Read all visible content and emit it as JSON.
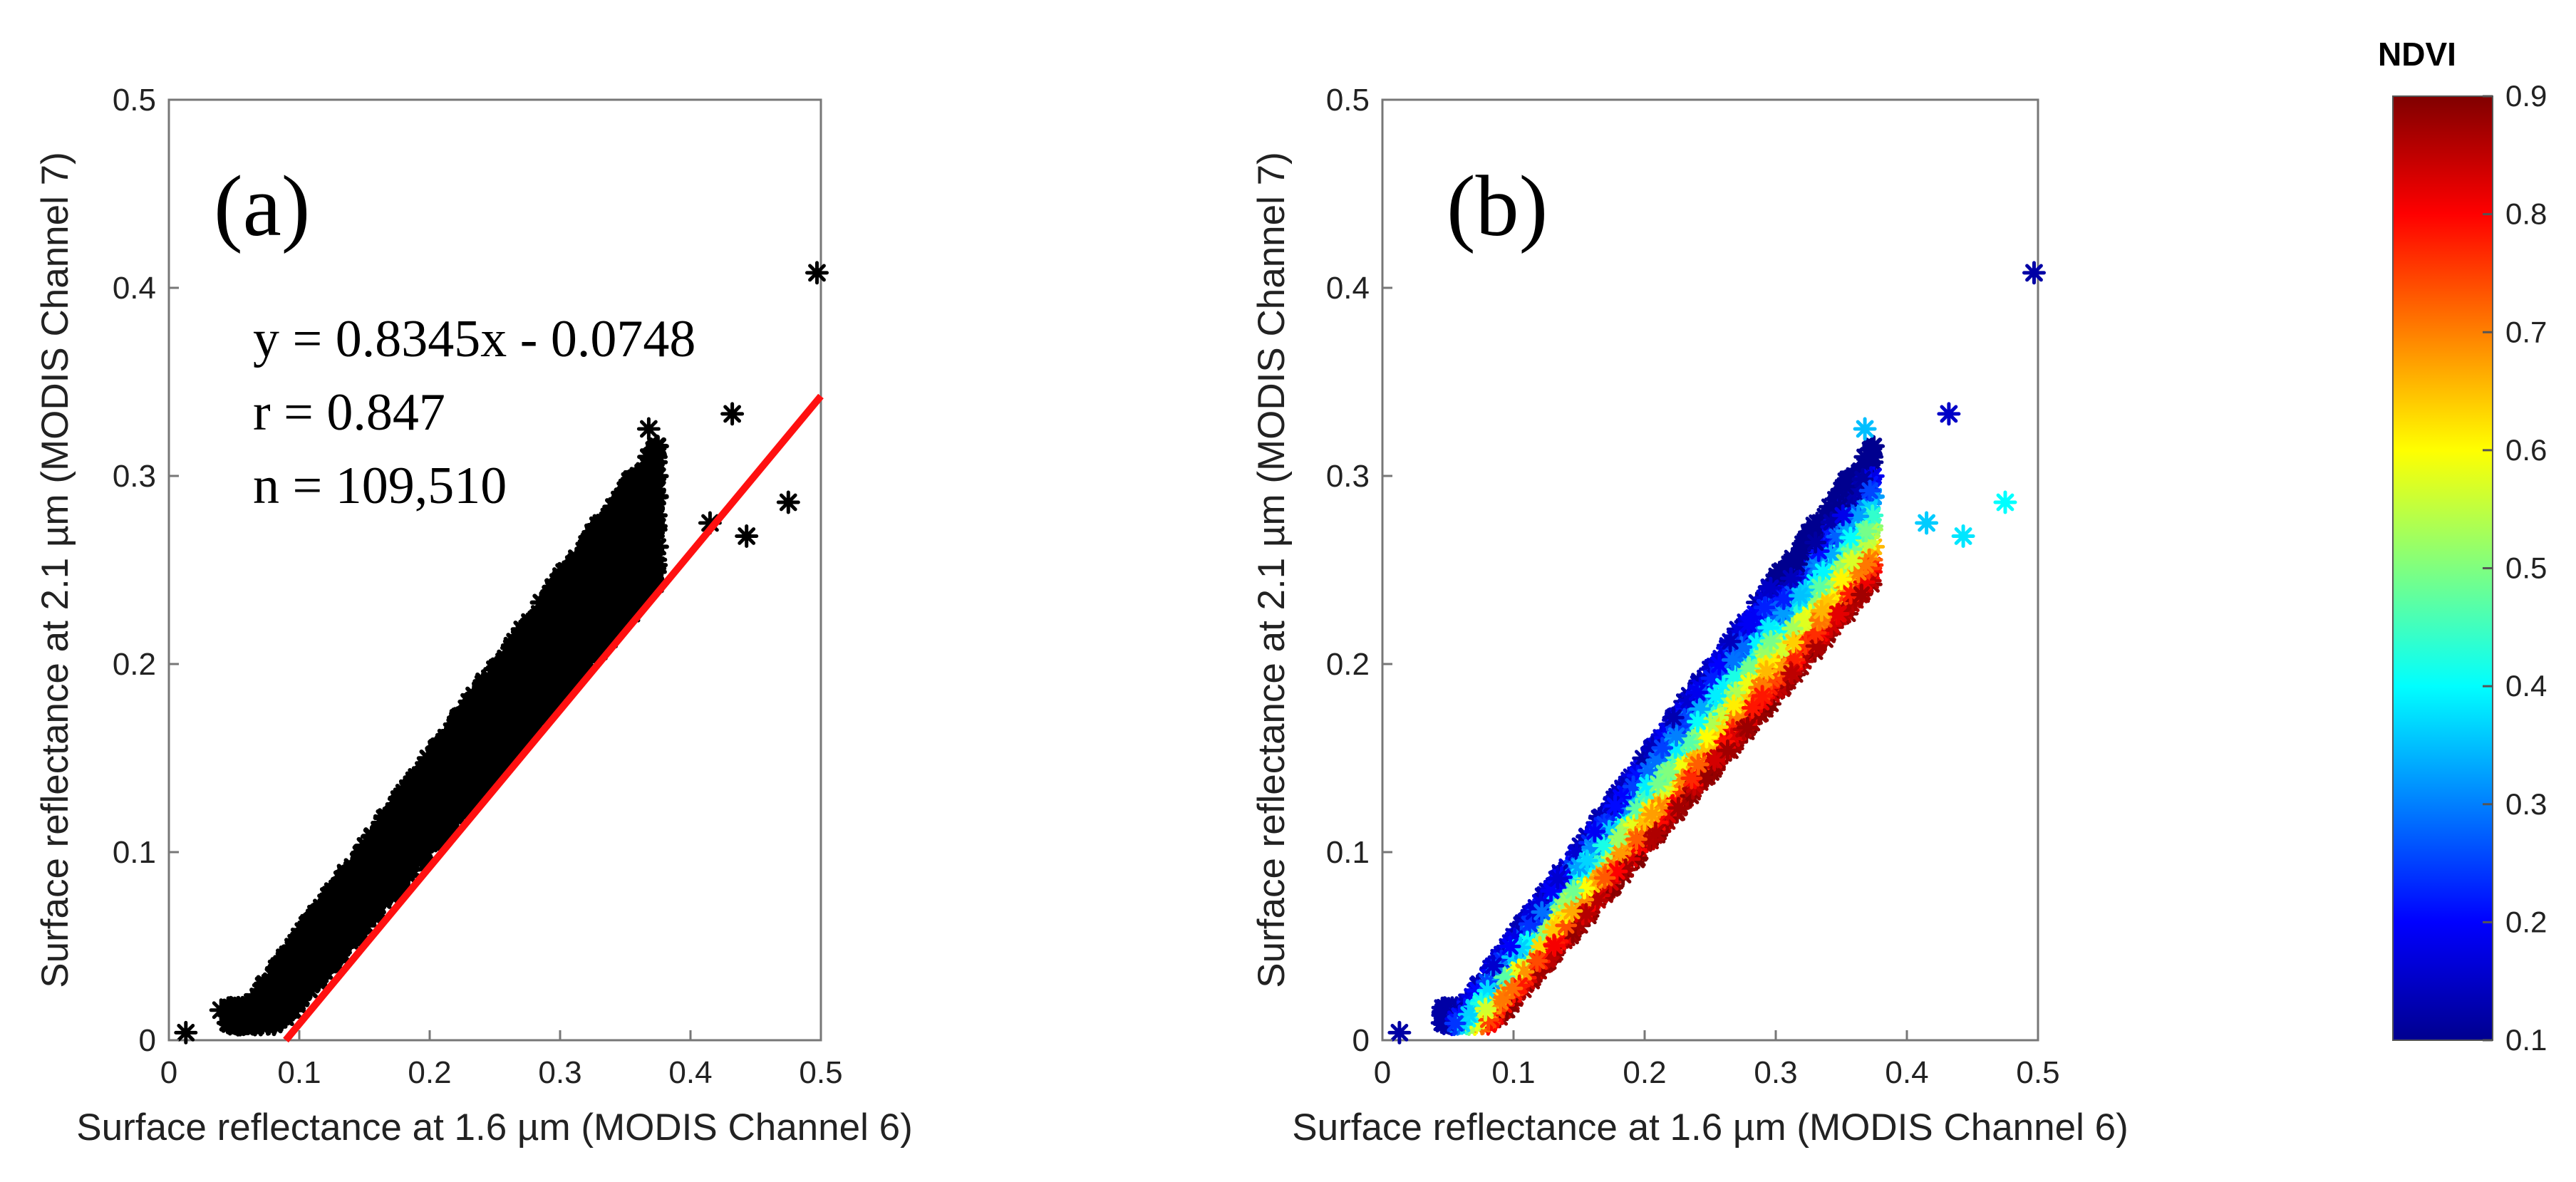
{
  "chart_data": [
    {
      "type": "scatter",
      "panel_label": "(a)",
      "xlabel": "Surface reflectance at 1.6 µm (MODIS Channel 6)",
      "ylabel": "Surface reflectance at 2.1 µm (MODIS Channel 7)",
      "xlim": [
        0,
        0.5
      ],
      "ylim": [
        0,
        0.5
      ],
      "xticks": [
        0,
        0.1,
        0.2,
        0.3,
        0.4,
        0.5
      ],
      "yticks": [
        0,
        0.1,
        0.2,
        0.3,
        0.4,
        0.5
      ],
      "xtick_labels": [
        "0",
        "0.1",
        "0.2",
        "0.3",
        "0.4",
        "0.5"
      ],
      "ytick_labels": [
        "0",
        "0.1",
        "0.2",
        "0.3",
        "0.4",
        "0.5"
      ],
      "marker": "asterisk",
      "marker_color": "#000000",
      "fit_line": {
        "slope": 0.8345,
        "intercept": -0.0748,
        "color": "#ff1010"
      },
      "annotations": [
        "y = 0.8345x - 0.0748",
        "r = 0.847",
        "n = 109,510"
      ],
      "outlier_points": [
        {
          "x": 0.013,
          "y": 0.004
        },
        {
          "x": 0.497,
          "y": 0.408
        },
        {
          "x": 0.475,
          "y": 0.286
        },
        {
          "x": 0.432,
          "y": 0.333
        },
        {
          "x": 0.443,
          "y": 0.268
        },
        {
          "x": 0.415,
          "y": 0.275
        },
        {
          "x": 0.368,
          "y": 0.325
        },
        {
          "x": 0.04,
          "y": 0.016
        }
      ]
    },
    {
      "type": "scatter",
      "panel_label": "(b)",
      "xlabel": "Surface reflectance at 1.6 µm (MODIS Channel 6)",
      "ylabel": "Surface reflectance at 2.1 µm (MODIS Channel 7)",
      "xlim": [
        0,
        0.5
      ],
      "ylim": [
        0,
        0.5
      ],
      "xticks": [
        0,
        0.1,
        0.2,
        0.3,
        0.4,
        0.5
      ],
      "yticks": [
        0,
        0.1,
        0.2,
        0.3,
        0.4,
        0.5
      ],
      "xtick_labels": [
        "0",
        "0.1",
        "0.2",
        "0.3",
        "0.4",
        "0.5"
      ],
      "ytick_labels": [
        "0",
        "0.1",
        "0.2",
        "0.3",
        "0.4",
        "0.5"
      ],
      "marker": "asterisk",
      "color_by": "NDVI",
      "colorbar": {
        "title": "NDVI",
        "range": [
          0.1,
          0.9
        ],
        "ticks": [
          0.1,
          0.2,
          0.3,
          0.4,
          0.5,
          0.6,
          0.7,
          0.8,
          0.9
        ],
        "tick_labels": [
          "0.1",
          "0.2",
          "0.3",
          "0.4",
          "0.5",
          "0.6",
          "0.7",
          "0.8",
          "0.9"
        ],
        "colormap": "jet"
      },
      "outlier_points": [
        {
          "x": 0.013,
          "y": 0.004,
          "ndvi": 0.12
        },
        {
          "x": 0.497,
          "y": 0.408,
          "ndvi": 0.12
        },
        {
          "x": 0.475,
          "y": 0.286,
          "ndvi": 0.4
        },
        {
          "x": 0.432,
          "y": 0.333,
          "ndvi": 0.15
        },
        {
          "x": 0.443,
          "y": 0.268,
          "ndvi": 0.38
        },
        {
          "x": 0.415,
          "y": 0.275,
          "ndvi": 0.36
        },
        {
          "x": 0.368,
          "y": 0.325,
          "ndvi": 0.35
        }
      ]
    }
  ]
}
